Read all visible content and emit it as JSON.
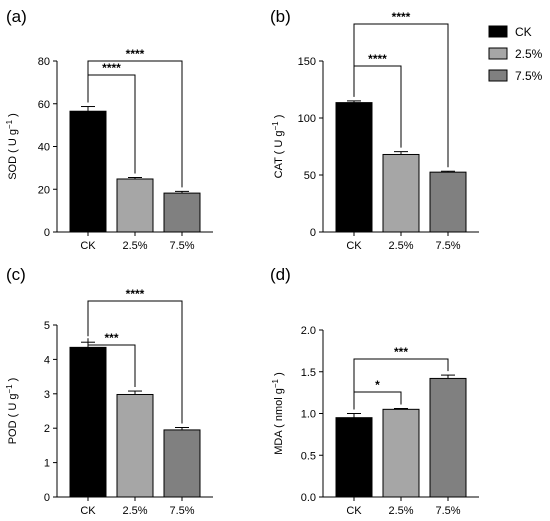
{
  "chart_data": [
    {
      "type": "bar",
      "panel_label": "(a)",
      "categories": [
        "CK",
        "2.5%",
        "7.5%"
      ],
      "values": [
        56.5,
        24.8,
        18.2
      ],
      "errors": [
        2.2,
        0.7,
        0.8
      ],
      "ylabel_pre": "SOD ( U g",
      "ylabel_sup": "−1",
      "ylabel_post": " )",
      "ylim": [
        0,
        80
      ],
      "yticks": [
        "0",
        "20",
        "40",
        "60",
        "80"
      ],
      "significance": [
        {
          "from": 0,
          "to": 1,
          "label": "****"
        },
        {
          "from": 0,
          "to": 2,
          "label": "****"
        }
      ]
    },
    {
      "type": "bar",
      "panel_label": "(b)",
      "categories": [
        "CK",
        "2.5%",
        "7.5%"
      ],
      "values": [
        113.5,
        68,
        52.5
      ],
      "errors": [
        1.5,
        2.5,
        0.8
      ],
      "ylabel_pre": "CAT ( U g",
      "ylabel_sup": "−1",
      "ylabel_post": " )",
      "ylim": [
        0,
        150
      ],
      "yticks": [
        "0",
        "50",
        "100",
        "150"
      ],
      "significance": [
        {
          "from": 0,
          "to": 1,
          "label": "****"
        },
        {
          "from": 0,
          "to": 2,
          "label": "****"
        }
      ]
    },
    {
      "type": "bar",
      "panel_label": "(c)",
      "categories": [
        "CK",
        "2.5%",
        "7.5%"
      ],
      "values": [
        4.35,
        2.98,
        1.95
      ],
      "errors": [
        0.15,
        0.1,
        0.07
      ],
      "ylabel_pre": "POD ( U g",
      "ylabel_sup": "−1",
      "ylabel_post": " )",
      "ylim": [
        0,
        5
      ],
      "yticks": [
        "0",
        "1",
        "2",
        "3",
        "4",
        "5"
      ],
      "significance": [
        {
          "from": 0,
          "to": 1,
          "label": "***"
        },
        {
          "from": 0,
          "to": 2,
          "label": "****"
        }
      ]
    },
    {
      "type": "bar",
      "panel_label": "(d)",
      "categories": [
        "CK",
        "2.5%",
        "7.5%"
      ],
      "values": [
        0.95,
        1.05,
        1.42
      ],
      "errors": [
        0.05,
        0.01,
        0.04
      ],
      "ylabel_pre": "MDA ( nmol g",
      "ylabel_sup": "−1",
      "ylabel_post": " )",
      "ylim": [
        0,
        2
      ],
      "yticks": [
        "0.0",
        "0.5",
        "1.0",
        "1.5",
        "2.0"
      ],
      "significance": [
        {
          "from": 0,
          "to": 1,
          "label": "*"
        },
        {
          "from": 0,
          "to": 2,
          "label": "***"
        }
      ]
    }
  ],
  "legend": [
    {
      "name": "CK",
      "color": "#000000"
    },
    {
      "name": "2.5%",
      "color": "#a6a6a6"
    },
    {
      "name": "7.5%",
      "color": "#808080"
    }
  ],
  "bar_colors": [
    "#000000",
    "#a6a6a6",
    "#808080"
  ]
}
